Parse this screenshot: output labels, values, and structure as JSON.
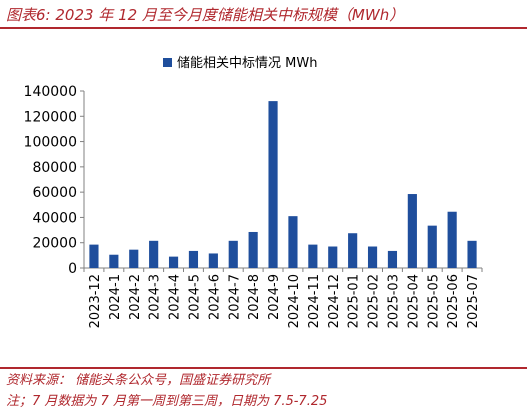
{
  "figure": {
    "title": "图表6:  2023 年 12 月至今月度储能相关中标规模（MWh）",
    "source": "资料来源： 储能头条公众号，国盛证券研究所",
    "note": "注；7 月数据为 7 月第一周到第三周，日期为 7.5-7.25"
  },
  "colors": {
    "accent": "#b0282e",
    "bar": "#1f4e9c",
    "axis": "#808080",
    "text": "#000000"
  },
  "chart_data": {
    "type": "bar",
    "categories": [
      "2023-12",
      "2024-1",
      "2024-2",
      "2024-3",
      "2024-4",
      "2024-5",
      "2024-6",
      "2024-7",
      "2024-8",
      "2024-9",
      "2024-10",
      "2024-11",
      "2024-12",
      "2025-01",
      "2025-02",
      "2025-03",
      "2025-04",
      "2025-05",
      "2025-06",
      "2025-07"
    ],
    "series": [
      {
        "name": "储能相关中标情况 MWh",
        "values": [
          18500,
          10500,
          14500,
          21500,
          9000,
          13500,
          11500,
          21500,
          28500,
          132000,
          41000,
          18500,
          17000,
          27500,
          17000,
          13500,
          58500,
          33500,
          44500,
          21500
        ]
      }
    ],
    "ylim": [
      0,
      140000
    ],
    "yticks": [
      "0",
      "20000",
      "40000",
      "60000",
      "80000",
      "100000",
      "120000",
      "140000"
    ],
    "xlabel": "",
    "ylabel": "",
    "grid": false,
    "legend_position": "top-center"
  }
}
